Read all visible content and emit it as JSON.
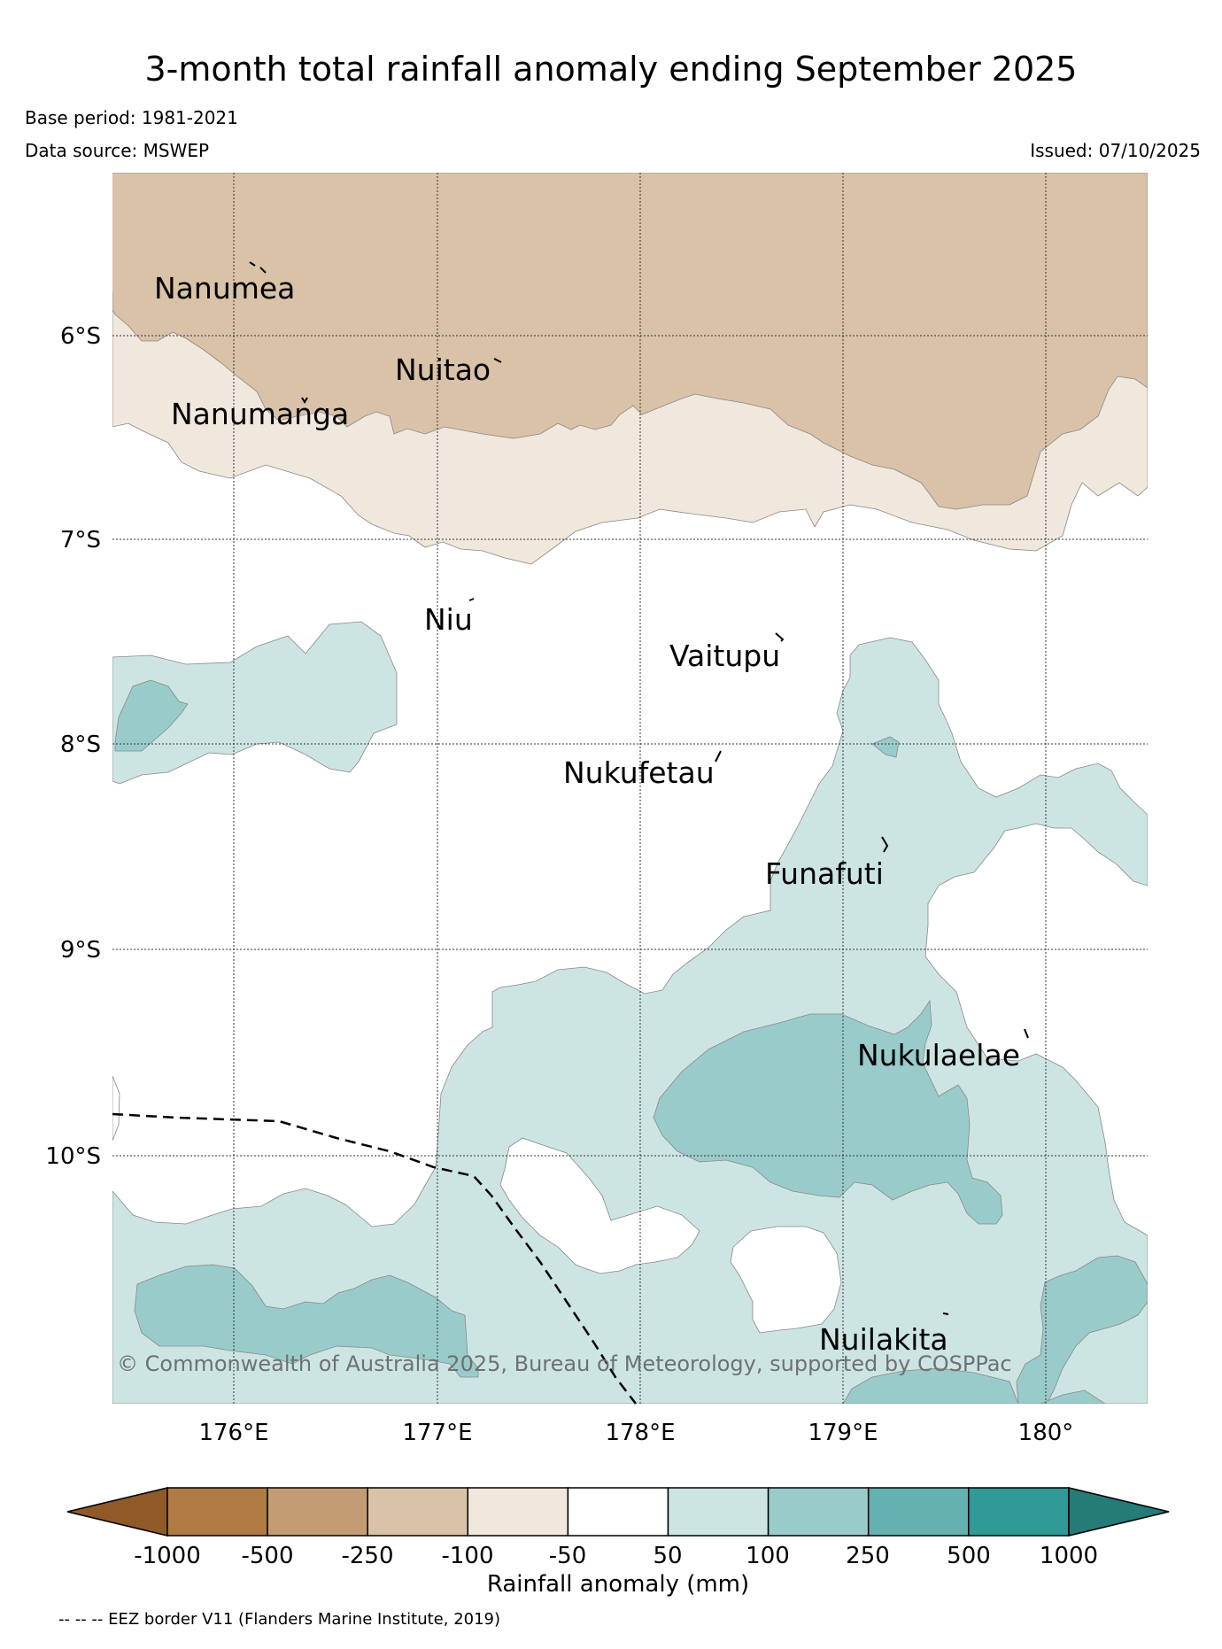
{
  "title": "3-month total rainfall anomaly ending September 2025",
  "base_period": "Base period: 1981-2021",
  "data_source": "Data source: MSWEP",
  "issued": "Issued: 07/10/2025",
  "copyright": "© Commonwealth of Australia 2025, Bureau of Meteorology, supported by COSPPac",
  "footnote": "-- -- -- EEZ border V11 (Flanders Marine Institute, 2019)",
  "map": {
    "lon_ticks": [
      "176°E",
      "177°E",
      "178°E",
      "179°E",
      "180°"
    ],
    "lat_ticks": [
      "6°S",
      "7°S",
      "8°S",
      "9°S",
      "10°S"
    ],
    "islands": [
      "Nanumea",
      "Nuitao",
      "Nanumanga",
      "Niu",
      "Vaitupu",
      "Nukufetau",
      "Funafuti",
      "Nukulaelae",
      "Nuilakita"
    ]
  },
  "legend": {
    "title": "Rainfall anomaly (mm)",
    "ticks": [
      "-1000",
      "-500",
      "-250",
      "-100",
      "-50",
      "50",
      "100",
      "250",
      "500",
      "1000"
    ],
    "colors": [
      "#8f5a28",
      "#b07a44",
      "#c49c74",
      "#d9c2a8",
      "#f0e7dd",
      "#ffffff",
      "#cce5e3",
      "#9acbcb",
      "#64b1b1",
      "#309a96",
      "#257b78"
    ]
  }
}
